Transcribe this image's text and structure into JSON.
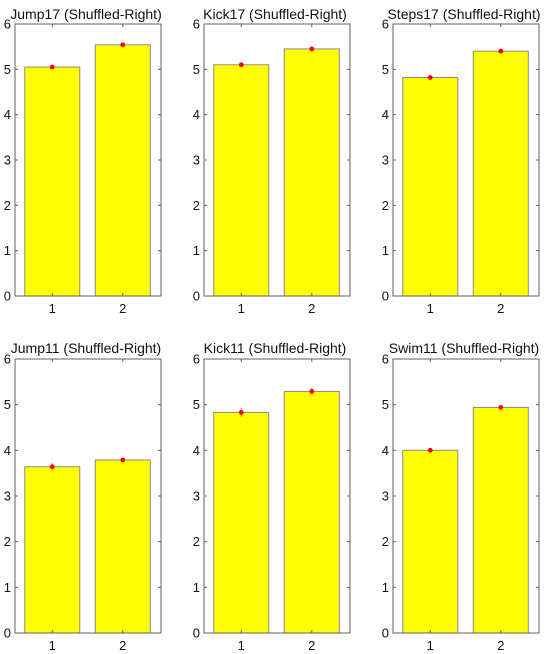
{
  "chart_data": [
    {
      "type": "bar",
      "title": "Jump17 (Shuffled-Right)",
      "categories": [
        "1",
        "2"
      ],
      "values": [
        5.05,
        5.54
      ],
      "error": [
        0.03,
        0.03
      ],
      "ylim": [
        0,
        6
      ],
      "yticks": [
        "0",
        "1",
        "2",
        "3",
        "4",
        "5",
        "6"
      ],
      "grid": false
    },
    {
      "type": "bar",
      "title": "Kick17 (Shuffled-Right)",
      "categories": [
        "1",
        "2"
      ],
      "values": [
        5.1,
        5.45
      ],
      "error": [
        0.03,
        0.03
      ],
      "ylim": [
        0,
        6
      ],
      "yticks": [
        "0",
        "1",
        "2",
        "3",
        "4",
        "5",
        "6"
      ],
      "grid": false
    },
    {
      "type": "bar",
      "title": "Steps17 (Shuffled-Right)",
      "categories": [
        "1",
        "2"
      ],
      "values": [
        4.82,
        5.4
      ],
      "error": [
        0.03,
        0.04
      ],
      "ylim": [
        0,
        6
      ],
      "yticks": [
        "0",
        "1",
        "2",
        "3",
        "4",
        "5",
        "6"
      ],
      "grid": false
    },
    {
      "type": "bar",
      "title": "Jump11 (Shuffled-Right)",
      "categories": [
        "1",
        "2"
      ],
      "values": [
        3.64,
        3.79
      ],
      "error": [
        0.08,
        0.04
      ],
      "ylim": [
        0,
        6
      ],
      "yticks": [
        "0",
        "1",
        "2",
        "3",
        "4",
        "5",
        "6"
      ],
      "grid": false
    },
    {
      "type": "bar",
      "title": "Kick11 (Shuffled-Right)",
      "categories": [
        "1",
        "2"
      ],
      "values": [
        4.83,
        5.29
      ],
      "error": [
        0.1,
        0.08
      ],
      "ylim": [
        0,
        6
      ],
      "yticks": [
        "0",
        "1",
        "2",
        "3",
        "4",
        "5",
        "6"
      ],
      "grid": false
    },
    {
      "type": "bar",
      "title": "Swim11 (Shuffled-Right)",
      "categories": [
        "1",
        "2"
      ],
      "values": [
        4.0,
        4.94
      ],
      "error": [
        0.03,
        0.03
      ],
      "ylim": [
        0,
        6
      ],
      "yticks": [
        "0",
        "1",
        "2",
        "3",
        "4",
        "5",
        "6"
      ],
      "grid": false
    }
  ],
  "colors": {
    "bar_fill": "#ffff00",
    "bar_edge": "#8a8a8a",
    "mean_dot": "#ff0000",
    "error_bar": "#e87878",
    "axis": "#606060"
  }
}
